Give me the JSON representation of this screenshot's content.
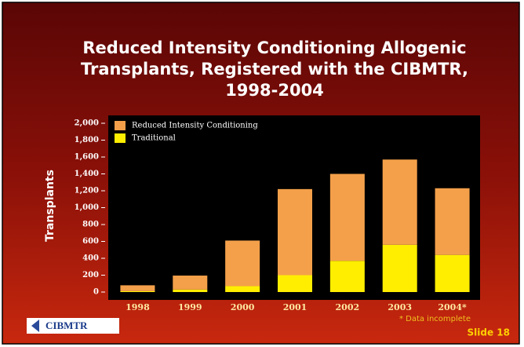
{
  "chart_data": {
    "type": "stacked-bar",
    "title_lines": [
      "Reduced Intensity Conditioning Allogenic",
      "Transplants, Registered with the CIBMTR,",
      "1998-2004"
    ],
    "y_label": "Transplants",
    "categories": [
      "1998",
      "1999",
      "2000",
      "2001",
      "2002",
      "2003",
      "2004*"
    ],
    "series": [
      {
        "name": "Reduced Intensity Conditioning",
        "color": "#f4a04a",
        "values": [
          70,
          165,
          540,
          1020,
          1030,
          1010,
          790
        ]
      },
      {
        "name": "Traditional",
        "color": "#ffee00",
        "values": [
          10,
          30,
          70,
          200,
          370,
          560,
          440
        ]
      }
    ],
    "ylim": [
      0,
      2000
    ],
    "yticks": [
      0,
      200,
      400,
      600,
      800,
      {
        "value": 1000,
        "label": "1,000"
      },
      {
        "value": 1200,
        "label": "1,200"
      },
      {
        "value": 1400,
        "label": "1,400"
      },
      {
        "value": 1600,
        "label": "1,600"
      },
      {
        "value": 1800,
        "label": "1,800"
      },
      {
        "value": 2000,
        "label": "2,000"
      }
    ],
    "annotation": "* Data incomplete",
    "logo": "CIBMTR",
    "slide_label": "Slide 18"
  }
}
